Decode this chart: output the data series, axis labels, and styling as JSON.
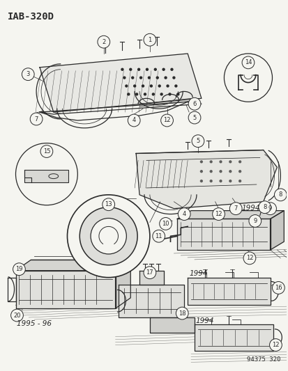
{
  "title": "IAB-320D",
  "footer_code": "94375 320",
  "bg_color": "#f5f5f0",
  "line_color": "#2a2a2a",
  "title_fontsize": 10,
  "label_r": 0.018,
  "label_fs": 6.0
}
